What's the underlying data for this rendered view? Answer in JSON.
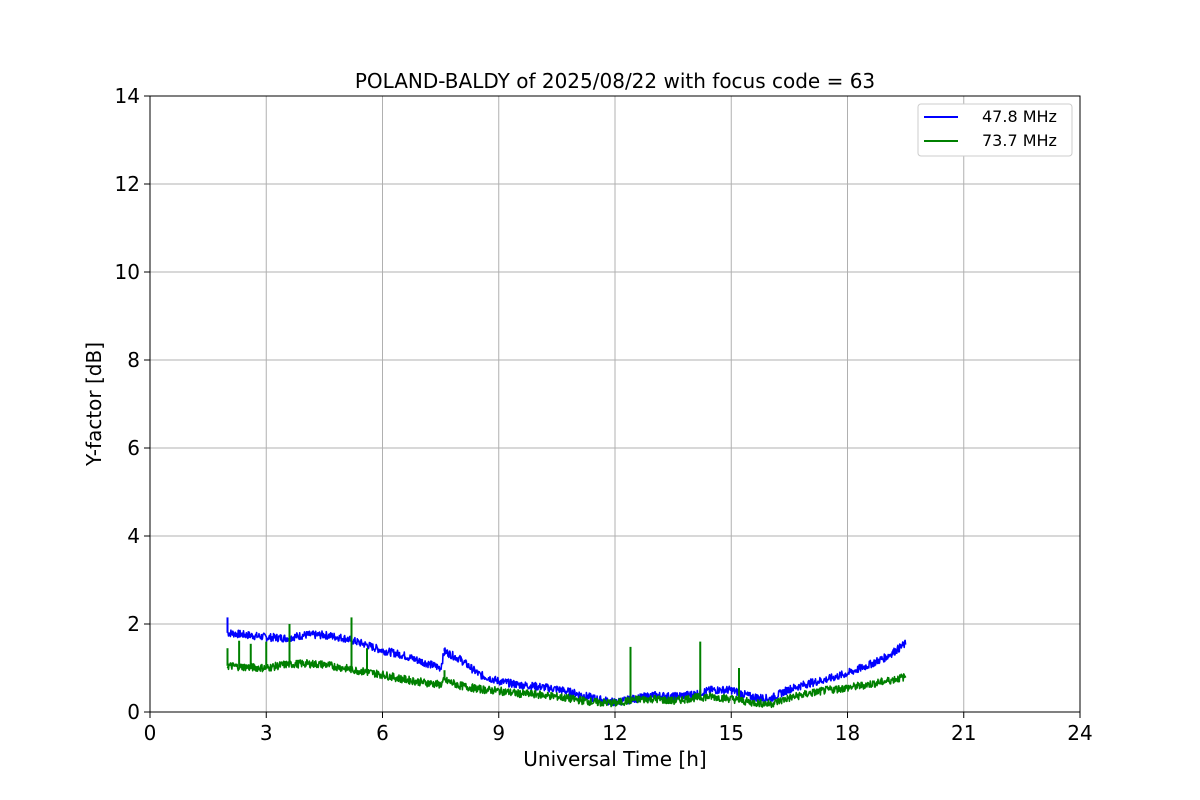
{
  "chart_data": {
    "type": "line",
    "title": "POLAND-BALDY of 2025/08/22 with focus code = 63",
    "xlabel": "Universal Time [h]",
    "ylabel": "Y-factor [dB]",
    "xlim": [
      0,
      24
    ],
    "ylim": [
      0,
      14
    ],
    "xticks": [
      0,
      3,
      6,
      9,
      12,
      15,
      18,
      21,
      24
    ],
    "yticks": [
      0,
      2,
      4,
      6,
      8,
      10,
      12,
      14
    ],
    "grid": true,
    "legend_position": "top-right",
    "x": [
      2.0,
      2.5,
      3.0,
      3.5,
      4.0,
      4.5,
      5.0,
      5.5,
      6.0,
      6.5,
      7.0,
      7.5,
      7.6,
      8.0,
      8.5,
      9.0,
      9.5,
      10.0,
      10.5,
      11.0,
      11.5,
      12.0,
      12.5,
      13.0,
      13.5,
      14.0,
      14.5,
      15.0,
      15.5,
      16.0,
      16.5,
      17.0,
      17.5,
      18.0,
      18.5,
      19.0,
      19.5
    ],
    "series": [
      {
        "name": "47.8 MHz",
        "color": "#0000ff",
        "values": [
          1.8,
          1.75,
          1.7,
          1.68,
          1.75,
          1.75,
          1.68,
          1.55,
          1.4,
          1.3,
          1.15,
          1.0,
          1.38,
          1.2,
          0.85,
          0.7,
          0.62,
          0.58,
          0.52,
          0.42,
          0.3,
          0.22,
          0.3,
          0.38,
          0.35,
          0.4,
          0.5,
          0.5,
          0.35,
          0.3,
          0.52,
          0.65,
          0.75,
          0.88,
          1.05,
          1.25,
          1.55
        ],
        "spikes": [
          [
            2.0,
            2.15
          ],
          [
            7.6,
            1.45
          ]
        ]
      },
      {
        "name": "73.7 MHz",
        "color": "#008000",
        "values": [
          1.05,
          1.02,
          1.0,
          1.08,
          1.1,
          1.08,
          1.0,
          0.92,
          0.85,
          0.75,
          0.68,
          0.62,
          0.72,
          0.6,
          0.52,
          0.48,
          0.42,
          0.4,
          0.35,
          0.28,
          0.22,
          0.2,
          0.28,
          0.3,
          0.25,
          0.32,
          0.35,
          0.3,
          0.22,
          0.18,
          0.32,
          0.42,
          0.5,
          0.55,
          0.62,
          0.7,
          0.8
        ],
        "spikes": [
          [
            2.0,
            1.45
          ],
          [
            2.3,
            1.62
          ],
          [
            2.6,
            1.55
          ],
          [
            3.0,
            1.6
          ],
          [
            3.6,
            2.0
          ],
          [
            5.2,
            2.15
          ],
          [
            5.6,
            1.45
          ],
          [
            7.6,
            0.95
          ],
          [
            12.4,
            1.48
          ],
          [
            14.2,
            1.6
          ],
          [
            15.2,
            1.0
          ]
        ]
      }
    ]
  }
}
